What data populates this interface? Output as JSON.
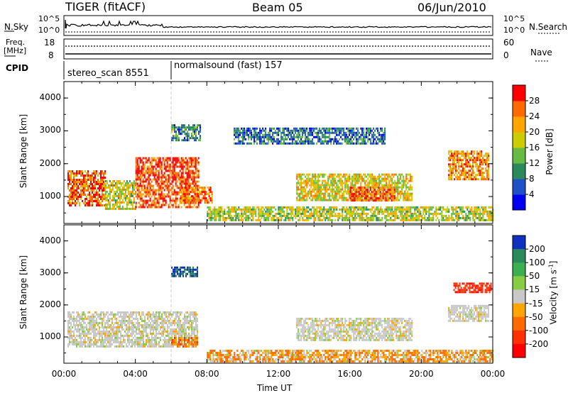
{
  "header": {
    "left": "TIGER (fitACF)",
    "center": "Beam 05",
    "right": "06/Jun/2010"
  },
  "top_strips": {
    "nsky": {
      "label": "N.Sky",
      "ticks": [
        "10^5",
        "10^0"
      ]
    },
    "nsearch": {
      "label": "N.Search",
      "ticks": [
        "10^5",
        "10^0"
      ]
    },
    "freq": {
      "label_line1": "Freq.",
      "label_line2": "[MHz]",
      "ticks": [
        "18",
        "8"
      ]
    },
    "nave": {
      "label": "Nave",
      "ticks": [
        "60",
        "0"
      ]
    },
    "cpid": {
      "label": "CPID",
      "segments": [
        {
          "name": "stereo_scan 8551",
          "start_hour": 0,
          "end_hour": 6
        },
        {
          "name": "normalsound (fast) 157",
          "start_hour": 6,
          "end_hour": 24
        }
      ]
    }
  },
  "chart_data": [
    {
      "type": "heatmap",
      "title": "",
      "xlabel": "Time UT",
      "ylabel": "Slant Range [km]",
      "x_ticks": [
        "00:00",
        "04:00",
        "08:00",
        "12:00",
        "16:00",
        "20:00",
        "00:00"
      ],
      "y_ticks": [
        "1000",
        "2000",
        "3000",
        "4000"
      ],
      "xlim": [
        0,
        24
      ],
      "ylim": [
        180,
        4500
      ],
      "colorbar": {
        "label": "Power [dB]",
        "ticks": [
          "4",
          "8",
          "12",
          "16",
          "20",
          "24",
          "28"
        ],
        "colors": [
          "#0000ee",
          "#2050c8",
          "#2a8a5c",
          "#66bb44",
          "#cccc00",
          "#ffa500",
          "#ff6a00",
          "#ff0000"
        ]
      },
      "regions": [
        {
          "t": [
            0.2,
            2.3
          ],
          "r": [
            700,
            1800
          ],
          "value": 26
        },
        {
          "t": [
            2.3,
            4.0
          ],
          "r": [
            600,
            1500
          ],
          "value": 18
        },
        {
          "t": [
            4.0,
            7.5
          ],
          "r": [
            700,
            2200
          ],
          "value": 27
        },
        {
          "t": [
            6.5,
            8.3
          ],
          "r": [
            800,
            1300
          ],
          "value": 25
        },
        {
          "t": [
            6.0,
            7.6
          ],
          "r": [
            2700,
            3200
          ],
          "value": 10
        },
        {
          "t": [
            8.0,
            24.0
          ],
          "r": [
            250,
            700
          ],
          "value": 17
        },
        {
          "t": [
            13.0,
            19.5
          ],
          "r": [
            900,
            1700
          ],
          "value": 19
        },
        {
          "t": [
            16.0,
            18.5
          ],
          "r": [
            850,
            1300
          ],
          "value": 27
        },
        {
          "t": [
            9.5,
            18.0
          ],
          "r": [
            2600,
            3100
          ],
          "value": 8
        },
        {
          "t": [
            21.5,
            23.8
          ],
          "r": [
            1500,
            2400
          ],
          "value": 24
        }
      ]
    },
    {
      "type": "heatmap",
      "title": "",
      "xlabel": "Time UT",
      "ylabel": "Slant Range [km]",
      "x_ticks": [
        "00:00",
        "04:00",
        "08:00",
        "12:00",
        "16:00",
        "20:00",
        "00:00"
      ],
      "y_ticks": [
        "1000",
        "2000",
        "3000",
        "4000"
      ],
      "xlim": [
        0,
        24
      ],
      "ylim": [
        180,
        4500
      ],
      "colorbar": {
        "label": "Velocity [m s^-1]",
        "ticks": [
          "200",
          "100",
          "50",
          "15",
          "-15",
          "-50",
          "-100",
          "-200"
        ],
        "colors": [
          "#1030c0",
          "#2a8a5c",
          "#3cb050",
          "#88cc44",
          "#c8c8c8",
          "#ffa500",
          "#ff6a00",
          "#ff3000",
          "#ff0000"
        ]
      },
      "regions": [
        {
          "t": [
            0.2,
            7.5
          ],
          "r": [
            700,
            1800
          ],
          "value": 0
        },
        {
          "t": [
            6.0,
            7.5
          ],
          "r": [
            700,
            1000
          ],
          "value": -60
        },
        {
          "t": [
            6.0,
            7.5
          ],
          "r": [
            2900,
            3200
          ],
          "value": 200
        },
        {
          "t": [
            8.0,
            24.0
          ],
          "r": [
            250,
            600
          ],
          "value": -40
        },
        {
          "t": [
            13.0,
            19.5
          ],
          "r": [
            900,
            1600
          ],
          "value": 0
        },
        {
          "t": [
            21.5,
            23.8
          ],
          "r": [
            1500,
            2000
          ],
          "value": 0
        },
        {
          "t": [
            21.8,
            23.9
          ],
          "r": [
            2400,
            2700
          ],
          "value": -180
        }
      ]
    }
  ]
}
